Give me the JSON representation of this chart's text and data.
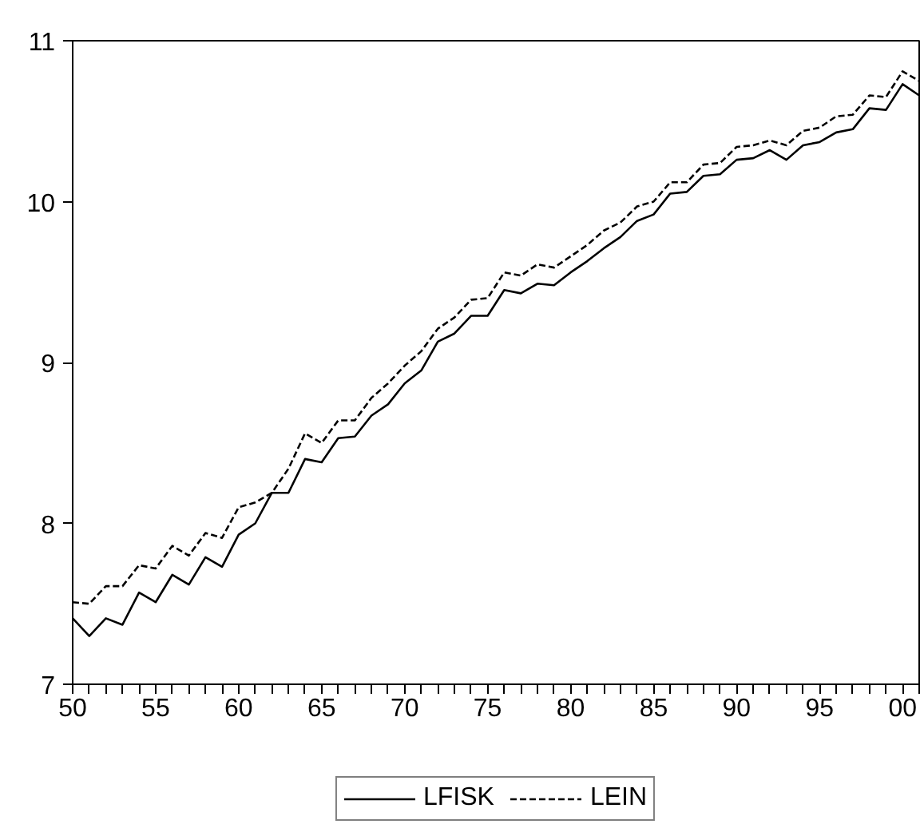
{
  "chart_data": {
    "type": "line",
    "x": [
      1950,
      1951,
      1952,
      1953,
      1954,
      1955,
      1956,
      1957,
      1958,
      1959,
      1960,
      1961,
      1962,
      1963,
      1964,
      1965,
      1966,
      1967,
      1968,
      1969,
      1970,
      1971,
      1972,
      1973,
      1974,
      1975,
      1976,
      1977,
      1978,
      1979,
      1980,
      1981,
      1982,
      1983,
      1984,
      1985,
      1986,
      1987,
      1988,
      1989,
      1990,
      1991,
      1992,
      1993,
      1994,
      1995,
      1996,
      1997,
      1998,
      1999,
      2000,
      2001
    ],
    "series": [
      {
        "name": "LFISK",
        "color": "#000000",
        "line_style": "solid",
        "values": [
          7.41,
          7.3,
          7.41,
          7.37,
          7.57,
          7.51,
          7.68,
          7.62,
          7.79,
          7.73,
          7.93,
          8.0,
          8.19,
          8.19,
          8.4,
          8.38,
          8.53,
          8.54,
          8.67,
          8.74,
          8.87,
          8.95,
          9.13,
          9.18,
          9.29,
          9.29,
          9.45,
          9.43,
          9.49,
          9.48,
          9.56,
          9.63,
          9.71,
          9.78,
          9.88,
          9.92,
          10.05,
          10.06,
          10.16,
          10.17,
          10.26,
          10.27,
          10.32,
          10.26,
          10.35,
          10.37,
          10.43,
          10.45,
          10.58,
          10.57,
          10.73,
          10.66
        ]
      },
      {
        "name": "LEIN",
        "color": "#000000",
        "line_style": "dashed",
        "values": [
          7.51,
          7.5,
          7.61,
          7.61,
          7.74,
          7.72,
          7.86,
          7.8,
          7.94,
          7.91,
          8.1,
          8.13,
          8.19,
          8.34,
          8.56,
          8.5,
          8.64,
          8.64,
          8.78,
          8.87,
          8.98,
          9.07,
          9.21,
          9.28,
          9.39,
          9.4,
          9.56,
          9.54,
          9.61,
          9.59,
          9.66,
          9.73,
          9.82,
          9.87,
          9.97,
          10.0,
          10.12,
          10.12,
          10.23,
          10.24,
          10.34,
          10.35,
          10.38,
          10.35,
          10.44,
          10.46,
          10.53,
          10.54,
          10.66,
          10.65,
          10.81,
          10.75
        ]
      }
    ],
    "xlim": [
      1950,
      2001
    ],
    "xticks": [
      {
        "value": 1950,
        "label": "50"
      },
      {
        "value": 1951,
        "label": null
      },
      {
        "value": 1952,
        "label": null
      },
      {
        "value": 1953,
        "label": null
      },
      {
        "value": 1954,
        "label": null
      },
      {
        "value": 1955,
        "label": "55"
      },
      {
        "value": 1956,
        "label": null
      },
      {
        "value": 1957,
        "label": null
      },
      {
        "value": 1958,
        "label": null
      },
      {
        "value": 1959,
        "label": null
      },
      {
        "value": 1960,
        "label": "60"
      },
      {
        "value": 1961,
        "label": null
      },
      {
        "value": 1962,
        "label": null
      },
      {
        "value": 1963,
        "label": null
      },
      {
        "value": 1964,
        "label": null
      },
      {
        "value": 1965,
        "label": "65"
      },
      {
        "value": 1966,
        "label": null
      },
      {
        "value": 1967,
        "label": null
      },
      {
        "value": 1968,
        "label": null
      },
      {
        "value": 1969,
        "label": null
      },
      {
        "value": 1970,
        "label": "70"
      },
      {
        "value": 1971,
        "label": null
      },
      {
        "value": 1972,
        "label": null
      },
      {
        "value": 1973,
        "label": null
      },
      {
        "value": 1974,
        "label": null
      },
      {
        "value": 1975,
        "label": "75"
      },
      {
        "value": 1976,
        "label": null
      },
      {
        "value": 1977,
        "label": null
      },
      {
        "value": 1978,
        "label": null
      },
      {
        "value": 1979,
        "label": null
      },
      {
        "value": 1980,
        "label": "80"
      },
      {
        "value": 1981,
        "label": null
      },
      {
        "value": 1982,
        "label": null
      },
      {
        "value": 1983,
        "label": null
      },
      {
        "value": 1984,
        "label": null
      },
      {
        "value": 1985,
        "label": "85"
      },
      {
        "value": 1986,
        "label": null
      },
      {
        "value": 1987,
        "label": null
      },
      {
        "value": 1988,
        "label": null
      },
      {
        "value": 1989,
        "label": null
      },
      {
        "value": 1990,
        "label": "90"
      },
      {
        "value": 1991,
        "label": null
      },
      {
        "value": 1992,
        "label": null
      },
      {
        "value": 1993,
        "label": null
      },
      {
        "value": 1994,
        "label": null
      },
      {
        "value": 1995,
        "label": "95"
      },
      {
        "value": 1996,
        "label": null
      },
      {
        "value": 1997,
        "label": null
      },
      {
        "value": 1998,
        "label": null
      },
      {
        "value": 1999,
        "label": null
      },
      {
        "value": 2000,
        "label": "00"
      },
      {
        "value": 2001,
        "label": null
      }
    ],
    "ylim": [
      7,
      11
    ],
    "yticks": [
      7,
      8,
      9,
      10,
      11
    ],
    "grid": false,
    "legend": "bottom"
  }
}
